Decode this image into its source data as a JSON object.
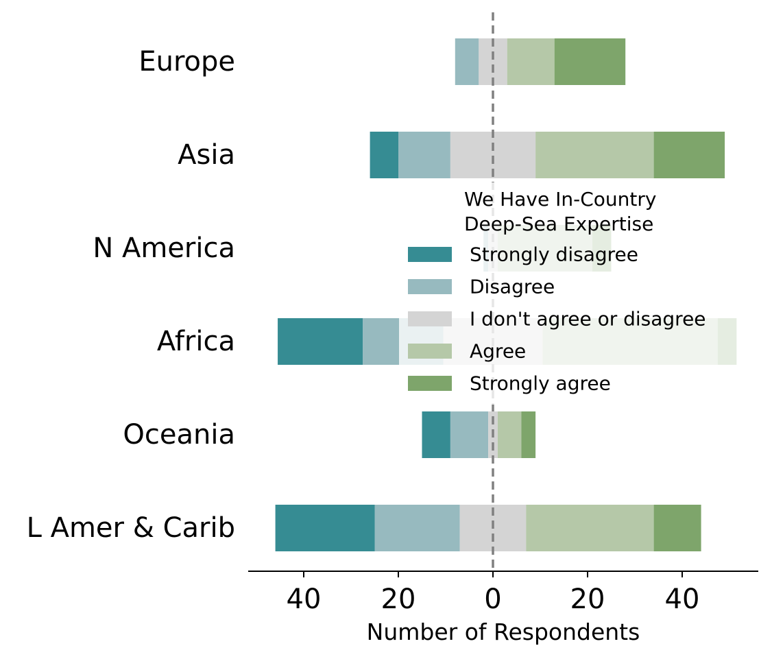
{
  "chart_data": {
    "type": "bar",
    "orientation": "horizontal",
    "layout": "diverging-stacked",
    "categories": [
      "Europe",
      "Asia",
      "N America",
      "Africa",
      "Oceania",
      "L Amer & Carib"
    ],
    "series": [
      {
        "name": "Strongly disagree",
        "color": "#368c93",
        "values": [
          0,
          6,
          0,
          18,
          6,
          21
        ]
      },
      {
        "name": "Disagree",
        "color": "#97babf",
        "values": [
          5,
          11,
          1,
          17,
          8,
          18
        ]
      },
      {
        "name": "I don't agree or disagree",
        "color": "#d4d4d4",
        "values": [
          6,
          18,
          2,
          21,
          2,
          14
        ]
      },
      {
        "name": "Agree",
        "color": "#b5c8a8",
        "values": [
          10,
          25,
          20,
          37,
          5,
          27
        ]
      },
      {
        "name": "Strongly agree",
        "color": "#7ea56b",
        "values": [
          15,
          15,
          4,
          4,
          3,
          10
        ]
      }
    ],
    "xlabel": "Number of Respondents",
    "xlim": [
      -52,
      56
    ],
    "xticks": [
      -40,
      -20,
      0,
      20,
      40
    ],
    "xtick_labels": [
      "40",
      "20",
      "0",
      "20",
      "40"
    ],
    "legend": {
      "title_lines": [
        "We Have In-Country",
        "Deep-Sea Expertise"
      ],
      "placement": "center-right"
    },
    "center_line": 0
  }
}
